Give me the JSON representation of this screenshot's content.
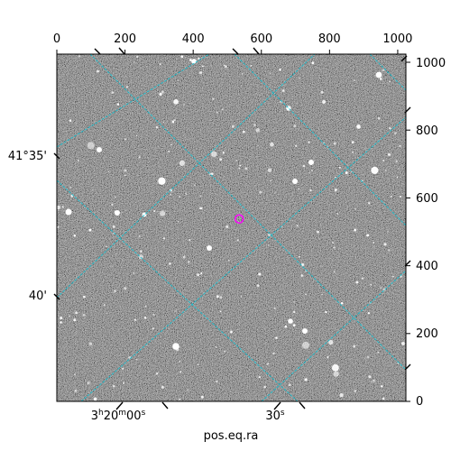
{
  "figure": {
    "xlabel": "pos.eq.ra",
    "top_ticks": [
      "0",
      "200",
      "400",
      "600",
      "800",
      "1000"
    ],
    "right_ticks": [
      "0",
      "200",
      "400",
      "600",
      "800",
      "1000"
    ],
    "ra_ticks": [
      {
        "h": "3",
        "hsup": "h",
        "m": "20",
        "msup": "m",
        "s": "00",
        "ssup": "s"
      },
      {
        "s": "30",
        "ssup": "s"
      }
    ],
    "dec_ticks": [
      "41°35'",
      "40'"
    ],
    "grid_color": "#17becf",
    "marker_color": "#ff00ff"
  },
  "chart_data": {
    "type": "scatter",
    "title": "",
    "x_range": [
      0,
      1024
    ],
    "y_range": [
      0,
      1024
    ],
    "x_ticks": [
      0,
      200,
      400,
      600,
      800,
      1000
    ],
    "y_ticks": [
      0,
      200,
      400,
      600,
      800,
      1000
    ],
    "grid": true,
    "series": [
      {
        "x": [
          535
        ],
        "y": [
          538
        ]
      }
    ]
  }
}
